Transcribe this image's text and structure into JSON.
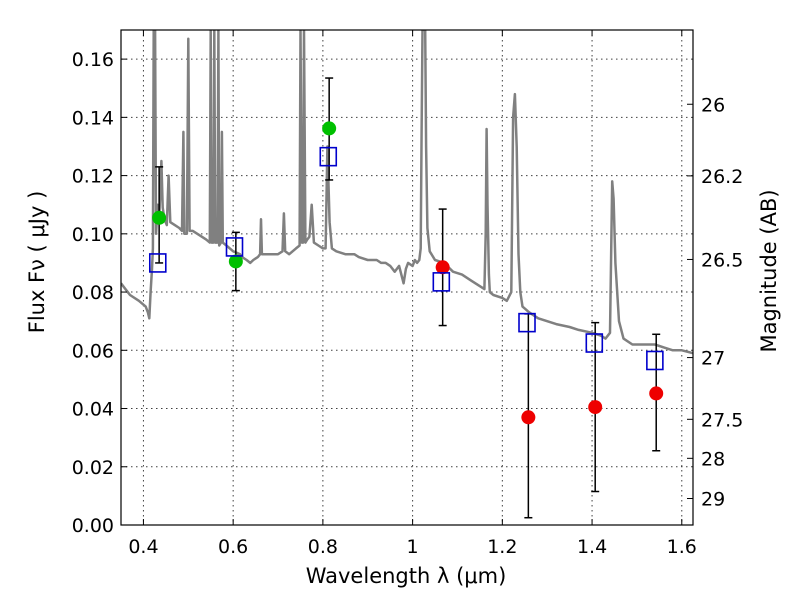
{
  "chart_data": {
    "type": "scatter",
    "xlabel": "Wavelength  λ (μm)",
    "ylabel": "Flux  Fν  ( μJy )",
    "y2label": "Magnitude (AB)",
    "xlim": [
      0.35,
      1.625
    ],
    "ylim": [
      0.0,
      0.17
    ],
    "grid": true,
    "x_ticks": [
      {
        "value": 0.4,
        "label": "0.4"
      },
      {
        "value": 0.6,
        "label": "0.6"
      },
      {
        "value": 0.8,
        "label": "0.8"
      },
      {
        "value": 1.0,
        "label": "1"
      },
      {
        "value": 1.2,
        "label": "1.2"
      },
      {
        "value": 1.4,
        "label": "1.4"
      },
      {
        "value": 1.6,
        "label": "1.6"
      }
    ],
    "y_ticks": [
      {
        "value": 0.0,
        "label": "0.00"
      },
      {
        "value": 0.02,
        "label": "0.02"
      },
      {
        "value": 0.04,
        "label": "0.04"
      },
      {
        "value": 0.06,
        "label": "0.06"
      },
      {
        "value": 0.08,
        "label": "0.08"
      },
      {
        "value": 0.1,
        "label": "0.10"
      },
      {
        "value": 0.12,
        "label": "0.12"
      },
      {
        "value": 0.14,
        "label": "0.14"
      },
      {
        "value": 0.16,
        "label": "0.16"
      }
    ],
    "y2_ticks": [
      {
        "flux": 0.1445,
        "label": "26"
      },
      {
        "flux": 0.1199,
        "label": "26.2"
      },
      {
        "flux": 0.0912,
        "label": "26.5"
      },
      {
        "flux": 0.0575,
        "label": "27"
      },
      {
        "flux": 0.0363,
        "label": "27.5"
      },
      {
        "flux": 0.0229,
        "label": "28"
      },
      {
        "flux": 0.0091,
        "label": "29"
      }
    ],
    "template_spectrum": {
      "color": "#808080",
      "points": [
        [
          0.35,
          0.083
        ],
        [
          0.37,
          0.079
        ],
        [
          0.39,
          0.077
        ],
        [
          0.405,
          0.075
        ],
        [
          0.41,
          0.073
        ],
        [
          0.413,
          0.071
        ],
        [
          0.416,
          0.08
        ],
        [
          0.419,
          0.088
        ],
        [
          0.421,
          0.095
        ],
        [
          0.423,
          0.17
        ],
        [
          0.426,
          0.17
        ],
        [
          0.428,
          0.1
        ],
        [
          0.432,
          0.11
        ],
        [
          0.435,
          0.104
        ],
        [
          0.44,
          0.125
        ],
        [
          0.443,
          0.109
        ],
        [
          0.447,
          0.105
        ],
        [
          0.452,
          0.103
        ],
        [
          0.456,
          0.12
        ],
        [
          0.46,
          0.104
        ],
        [
          0.47,
          0.103
        ],
        [
          0.48,
          0.102
        ],
        [
          0.486,
          0.101
        ],
        [
          0.489,
          0.135
        ],
        [
          0.491,
          0.1
        ],
        [
          0.497,
          0.1
        ],
        [
          0.5,
          0.167
        ],
        [
          0.503,
          0.101
        ],
        [
          0.51,
          0.101
        ],
        [
          0.52,
          0.1
        ],
        [
          0.53,
          0.099
        ],
        [
          0.54,
          0.098
        ],
        [
          0.548,
          0.097
        ],
        [
          0.55,
          0.17
        ],
        [
          0.552,
          0.097
        ],
        [
          0.556,
          0.097
        ],
        [
          0.558,
          0.17
        ],
        [
          0.56,
          0.097
        ],
        [
          0.565,
          0.097
        ],
        [
          0.567,
          0.17
        ],
        [
          0.569,
          0.096
        ],
        [
          0.573,
          0.097
        ],
        [
          0.575,
          0.135
        ],
        [
          0.577,
          0.097
        ],
        [
          0.585,
          0.096
        ],
        [
          0.6,
          0.094
        ],
        [
          0.615,
          0.093
        ],
        [
          0.62,
          0.092
        ],
        [
          0.63,
          0.091
        ],
        [
          0.638,
          0.09
        ],
        [
          0.645,
          0.091
        ],
        [
          0.655,
          0.092
        ],
        [
          0.66,
          0.093
        ],
        [
          0.662,
          0.105
        ],
        [
          0.664,
          0.093
        ],
        [
          0.67,
          0.093
        ],
        [
          0.7,
          0.093
        ],
        [
          0.71,
          0.094
        ],
        [
          0.713,
          0.107
        ],
        [
          0.716,
          0.094
        ],
        [
          0.725,
          0.093
        ],
        [
          0.74,
          0.095
        ],
        [
          0.748,
          0.096
        ],
        [
          0.75,
          0.17
        ],
        [
          0.753,
          0.097
        ],
        [
          0.756,
          0.097
        ],
        [
          0.758,
          0.17
        ],
        [
          0.761,
          0.097
        ],
        [
          0.765,
          0.098
        ],
        [
          0.77,
          0.099
        ],
        [
          0.775,
          0.11
        ],
        [
          0.78,
          0.097
        ],
        [
          0.79,
          0.096
        ],
        [
          0.8,
          0.095
        ],
        [
          0.806,
          0.095
        ],
        [
          0.81,
          0.13
        ],
        [
          0.815,
          0.104
        ],
        [
          0.82,
          0.095
        ],
        [
          0.83,
          0.094
        ],
        [
          0.85,
          0.093
        ],
        [
          0.87,
          0.093
        ],
        [
          0.88,
          0.092
        ],
        [
          0.9,
          0.091
        ],
        [
          0.92,
          0.091
        ],
        [
          0.93,
          0.09
        ],
        [
          0.94,
          0.09
        ],
        [
          0.95,
          0.089
        ],
        [
          0.96,
          0.087
        ],
        [
          0.97,
          0.089
        ],
        [
          0.98,
          0.083
        ],
        [
          0.985,
          0.088
        ],
        [
          0.99,
          0.09
        ],
        [
          1.0,
          0.089
        ],
        [
          1.005,
          0.091
        ],
        [
          1.01,
          0.09
        ],
        [
          1.015,
          0.091
        ],
        [
          1.018,
          0.095
        ],
        [
          1.02,
          0.135
        ],
        [
          1.022,
          0.17
        ],
        [
          1.028,
          0.17
        ],
        [
          1.03,
          0.13
        ],
        [
          1.033,
          0.102
        ],
        [
          1.038,
          0.094
        ],
        [
          1.05,
          0.091
        ],
        [
          1.07,
          0.09
        ],
        [
          1.09,
          0.087
        ],
        [
          1.11,
          0.086
        ],
        [
          1.13,
          0.084
        ],
        [
          1.15,
          0.082
        ],
        [
          1.16,
          0.081
        ],
        [
          1.163,
          0.1
        ],
        [
          1.165,
          0.136
        ],
        [
          1.167,
          0.11
        ],
        [
          1.17,
          0.086
        ],
        [
          1.172,
          0.08
        ],
        [
          1.18,
          0.079
        ],
        [
          1.2,
          0.078
        ],
        [
          1.21,
          0.077
        ],
        [
          1.22,
          0.08
        ],
        [
          1.224,
          0.14
        ],
        [
          1.228,
          0.148
        ],
        [
          1.232,
          0.13
        ],
        [
          1.236,
          0.093
        ],
        [
          1.24,
          0.08
        ],
        [
          1.245,
          0.075
        ],
        [
          1.26,
          0.073
        ],
        [
          1.28,
          0.071
        ],
        [
          1.3,
          0.07
        ],
        [
          1.32,
          0.069
        ],
        [
          1.35,
          0.068
        ],
        [
          1.37,
          0.067
        ],
        [
          1.4,
          0.066
        ],
        [
          1.42,
          0.065
        ],
        [
          1.43,
          0.064
        ],
        [
          1.44,
          0.066
        ],
        [
          1.445,
          0.118
        ],
        [
          1.448,
          0.112
        ],
        [
          1.452,
          0.09
        ],
        [
          1.46,
          0.07
        ],
        [
          1.47,
          0.064
        ],
        [
          1.49,
          0.062
        ],
        [
          1.5,
          0.062
        ],
        [
          1.52,
          0.062
        ],
        [
          1.54,
          0.062
        ],
        [
          1.56,
          0.061
        ],
        [
          1.58,
          0.06
        ],
        [
          1.6,
          0.06
        ],
        [
          1.625,
          0.059
        ]
      ]
    },
    "series": [
      {
        "marker": "filled-circle",
        "color": "#00c000",
        "points": [
          {
            "x": 0.435,
            "y": 0.1055
          },
          {
            "x": 0.606,
            "y": 0.0905
          },
          {
            "x": 0.814,
            "y": 0.1362
          }
        ]
      },
      {
        "marker": "filled-circle",
        "color": "#ee0000",
        "points": [
          {
            "x": 1.067,
            "y": 0.0885
          },
          {
            "x": 1.258,
            "y": 0.037
          },
          {
            "x": 1.407,
            "y": 0.0405
          },
          {
            "x": 1.543,
            "y": 0.0452
          }
        ]
      },
      {
        "marker": "open-square",
        "color": "#0000cc",
        "points": [
          {
            "x": 0.432,
            "y": 0.09
          },
          {
            "x": 0.603,
            "y": 0.0955
          },
          {
            "x": 0.812,
            "y": 0.1265
          },
          {
            "x": 1.064,
            "y": 0.0835
          },
          {
            "x": 1.255,
            "y": 0.0695
          },
          {
            "x": 1.405,
            "y": 0.0625
          },
          {
            "x": 1.54,
            "y": 0.0565
          }
        ]
      }
    ],
    "error_bars": [
      {
        "x": 0.435,
        "low": 0.09,
        "high": 0.123
      },
      {
        "x": 0.606,
        "low": 0.0805,
        "high": 0.1005
      },
      {
        "x": 0.814,
        "low": 0.1185,
        "high": 0.1535
      },
      {
        "x": 1.067,
        "low": 0.0685,
        "high": 0.1085
      },
      {
        "x": 1.258,
        "low": 0.0025,
        "high": 0.0725
      },
      {
        "x": 1.407,
        "low": 0.0115,
        "high": 0.0695
      },
      {
        "x": 1.543,
        "low": 0.0255,
        "high": 0.0655
      }
    ],
    "error_bar_color": "#000000"
  }
}
